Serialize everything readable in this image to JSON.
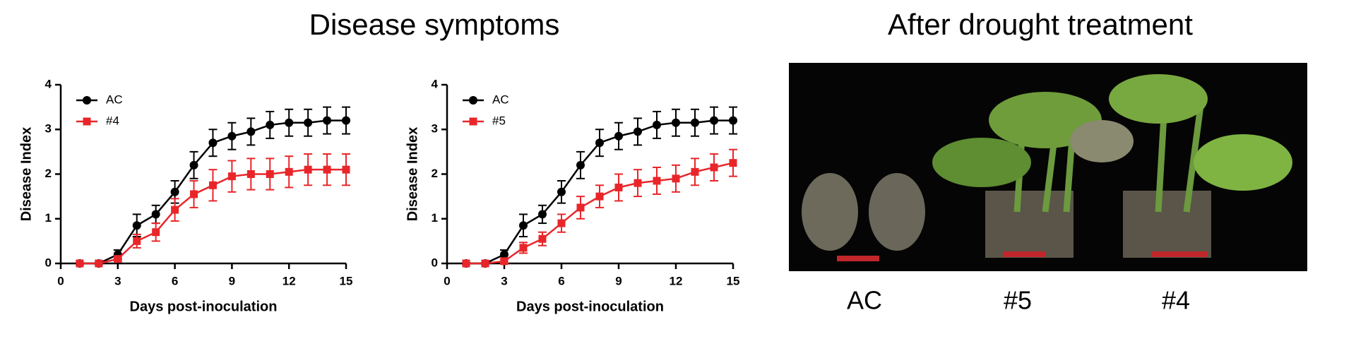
{
  "titles": [
    "Disease symptoms",
    "After drought treatment"
  ],
  "chart_data": [
    {
      "type": "line",
      "xlabel": "Days post-inoculation",
      "ylabel": "Disease Index",
      "x": [
        1,
        2,
        3,
        4,
        5,
        6,
        7,
        8,
        9,
        10,
        11,
        12,
        13,
        14,
        15
      ],
      "series": [
        {
          "name": "AC",
          "color": "#000000",
          "marker": "circle",
          "values": [
            0,
            0,
            0.2,
            0.85,
            1.1,
            1.6,
            2.2,
            2.7,
            2.85,
            2.95,
            3.1,
            3.15,
            3.15,
            3.2,
            3.2
          ],
          "errors": [
            0,
            0,
            0.1,
            0.25,
            0.2,
            0.25,
            0.3,
            0.3,
            0.3,
            0.3,
            0.3,
            0.3,
            0.3,
            0.3,
            0.3
          ]
        },
        {
          "name": "#4",
          "color": "#e8262a",
          "marker": "square",
          "values": [
            0,
            0,
            0.1,
            0.5,
            0.7,
            1.2,
            1.55,
            1.75,
            1.95,
            2.0,
            2.0,
            2.05,
            2.1,
            2.1,
            2.1
          ],
          "errors": [
            0,
            0,
            0.05,
            0.15,
            0.2,
            0.25,
            0.3,
            0.35,
            0.35,
            0.35,
            0.35,
            0.35,
            0.35,
            0.35,
            0.35
          ]
        }
      ],
      "xlim": [
        0,
        15
      ],
      "xticks": [
        0,
        3,
        6,
        9,
        12,
        15
      ],
      "ylim": [
        0,
        4
      ],
      "yticks": [
        0,
        1,
        2,
        3,
        4
      ],
      "legend": "upper left"
    },
    {
      "type": "line",
      "xlabel": "Days post-inoculation",
      "ylabel": "Disease Index",
      "x": [
        1,
        2,
        3,
        4,
        5,
        6,
        7,
        8,
        9,
        10,
        11,
        12,
        13,
        14,
        15
      ],
      "series": [
        {
          "name": "AC",
          "color": "#000000",
          "marker": "circle",
          "values": [
            0,
            0,
            0.2,
            0.85,
            1.1,
            1.6,
            2.2,
            2.7,
            2.85,
            2.95,
            3.1,
            3.15,
            3.15,
            3.2,
            3.2
          ],
          "errors": [
            0,
            0,
            0.1,
            0.25,
            0.2,
            0.25,
            0.3,
            0.3,
            0.3,
            0.3,
            0.3,
            0.3,
            0.3,
            0.3,
            0.3
          ]
        },
        {
          "name": "#5",
          "color": "#e8262a",
          "marker": "square",
          "values": [
            0,
            0,
            0.05,
            0.35,
            0.55,
            0.9,
            1.25,
            1.5,
            1.7,
            1.8,
            1.85,
            1.9,
            2.05,
            2.15,
            2.25
          ],
          "errors": [
            0,
            0,
            0.05,
            0.12,
            0.15,
            0.2,
            0.25,
            0.25,
            0.3,
            0.3,
            0.3,
            0.3,
            0.3,
            0.3,
            0.3
          ]
        }
      ],
      "xlim": [
        0,
        15
      ],
      "xticks": [
        0,
        3,
        6,
        9,
        12,
        15
      ],
      "ylim": [
        0,
        4
      ],
      "yticks": [
        0,
        1,
        2,
        3,
        4
      ],
      "legend": "upper left"
    }
  ],
  "photo": {
    "labels": [
      "AC",
      "#5",
      "#4"
    ]
  }
}
